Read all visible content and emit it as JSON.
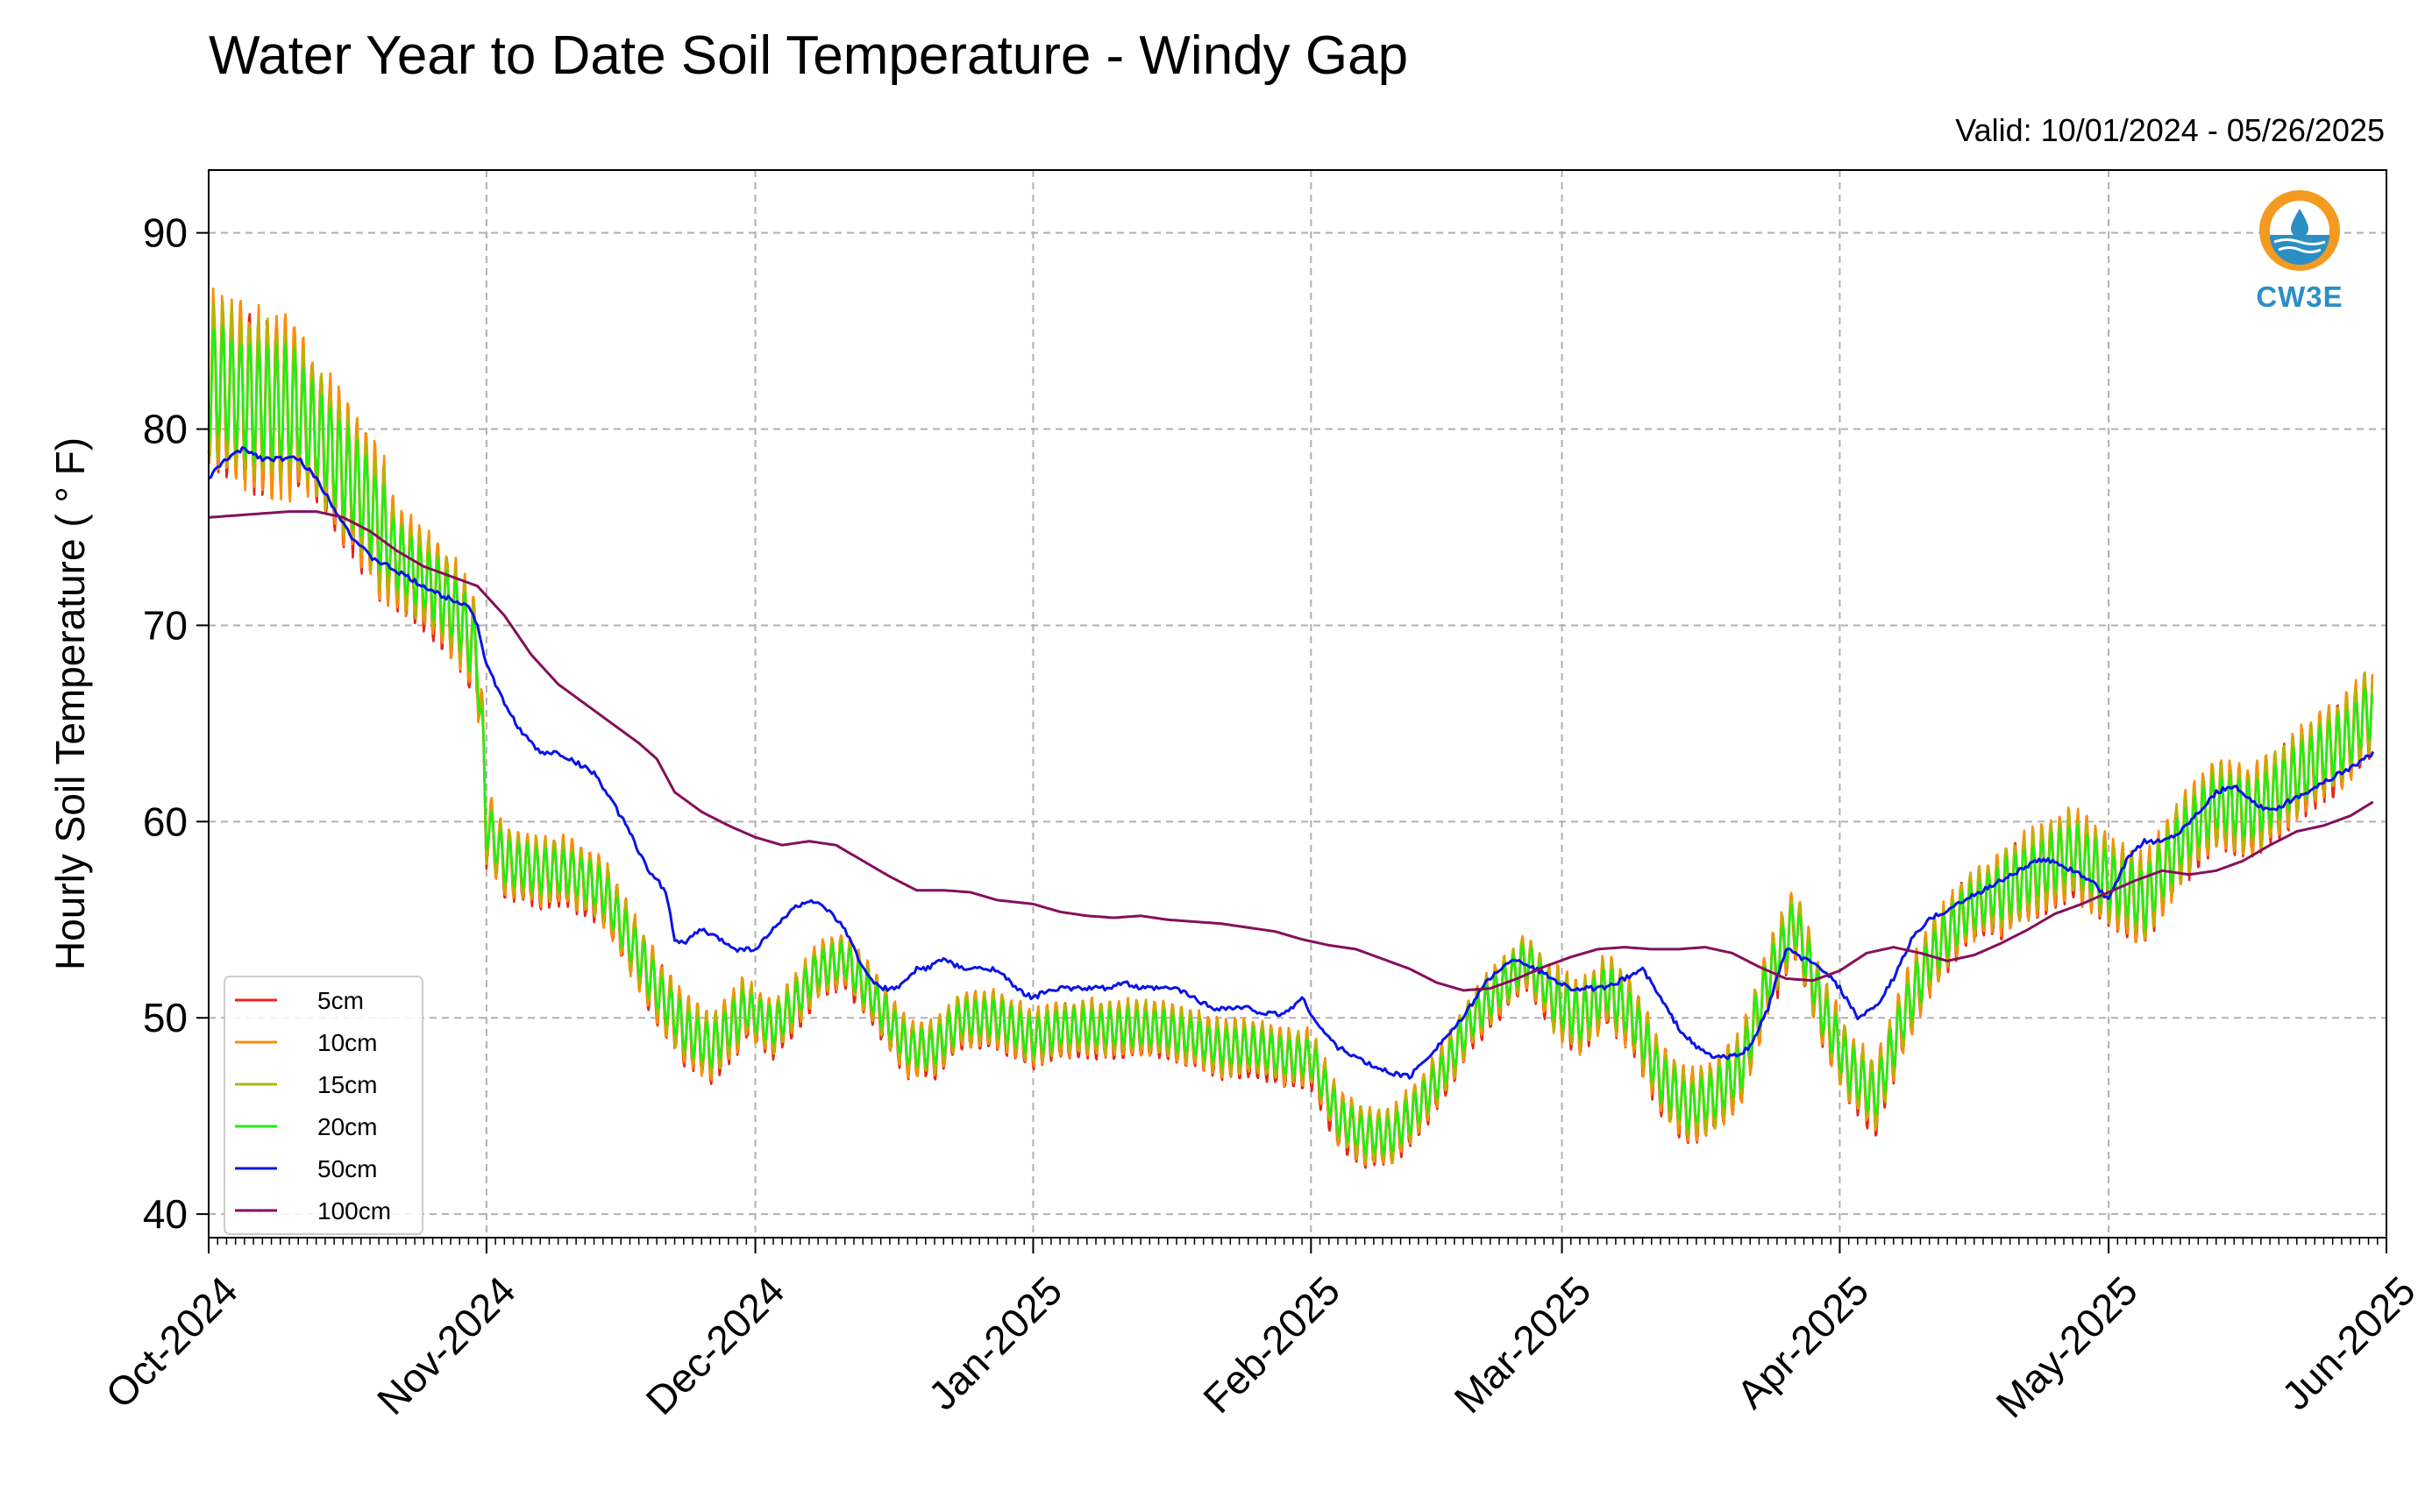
{
  "title": "Water Year to Date Soil Temperature - Windy Gap",
  "subtitle": "Valid: 10/01/2024 - 05/26/2025",
  "logo": {
    "text": "CW3E",
    "icon": "cw3e-logo-icon",
    "colors": {
      "orange": "#f39a21",
      "blue": "#2b8fc4"
    }
  },
  "chart_data": {
    "type": "line",
    "ylabel": "Hourly Soil Temperature ($^\\circ$F)",
    "ylabel_display": "Hourly Soil Temperature ( ° F)",
    "xlabel": "",
    "x_start": "2024-10-01",
    "x_end": "2025-06-01",
    "xlim_days": [
      0,
      243
    ],
    "ylim": [
      38.8,
      93.2
    ],
    "y_ticks": [
      40,
      50,
      60,
      70,
      80,
      90
    ],
    "x_tick_days": [
      0,
      31,
      61,
      92,
      123,
      151,
      182,
      212,
      243
    ],
    "x_tick_labels": [
      "Oct-2024",
      "Nov-2024",
      "Dec-2024",
      "Jan-2025",
      "Feb-2025",
      "Mar-2025",
      "Apr-2025",
      "May-2025",
      "Jun-2025"
    ],
    "grid": true,
    "legend_position": "lower-left",
    "series": [
      {
        "name": "5cm",
        "color": "#e8221b",
        "days": [
          0,
          5,
          10,
          15,
          18,
          21,
          25,
          28,
          30,
          31,
          33,
          37,
          40,
          44,
          47,
          50,
          53,
          56,
          58,
          60,
          63,
          65,
          68,
          71,
          75,
          78,
          81,
          84,
          88,
          92,
          95,
          98,
          102,
          106,
          110,
          113,
          117,
          120,
          123,
          126,
          129,
          132,
          135,
          138,
          141,
          144,
          147,
          150,
          153,
          156,
          159,
          162,
          165,
          168,
          171,
          174,
          177,
          180,
          183,
          186,
          189,
          192,
          196,
          200,
          204,
          208,
          212,
          216,
          220,
          224,
          228,
          232,
          236,
          238,
          240,
          241.5
        ],
        "values": [
          82.5,
          81.5,
          81,
          78,
          76,
          73.5,
          72,
          70.5,
          68.5,
          60,
          58,
          57.5,
          57.5,
          56.5,
          54,
          51.5,
          49.5,
          48.5,
          49.5,
          50.5,
          49.5,
          50.5,
          52.5,
          53,
          50.5,
          48.5,
          48.5,
          50,
          50,
          49,
          49.5,
          49.5,
          49.5,
          49.5,
          49,
          48.5,
          48.5,
          48,
          48,
          45,
          44,
          44,
          45.5,
          47.5,
          50,
          51.5,
          53,
          51,
          50,
          51.5,
          50,
          47,
          45.5,
          46,
          47.5,
          52,
          55,
          50.5,
          47.5,
          46,
          50,
          53,
          55.5,
          56.5,
          57.5,
          58.5,
          57,
          56,
          59,
          61,
          60.5,
          62,
          63.5,
          64,
          65,
          66
        ]
      },
      {
        "name": "10cm",
        "color": "#ff8c00",
        "days": [
          0,
          5,
          10,
          15,
          18,
          21,
          25,
          28,
          30,
          31,
          33,
          37,
          40,
          44,
          47,
          50,
          53,
          56,
          58,
          60,
          63,
          65,
          68,
          71,
          75,
          78,
          81,
          84,
          88,
          92,
          95,
          98,
          102,
          106,
          110,
          113,
          117,
          120,
          123,
          126,
          129,
          132,
          135,
          138,
          141,
          144,
          147,
          150,
          153,
          156,
          159,
          162,
          165,
          168,
          171,
          174,
          177,
          180,
          183,
          186,
          189,
          192,
          196,
          200,
          204,
          208,
          212,
          216,
          220,
          224,
          228,
          232,
          236,
          238,
          240,
          241.5
        ],
        "values": [
          82.5,
          81.5,
          81,
          78,
          76,
          73.5,
          72,
          70.5,
          68.5,
          60,
          58,
          57.5,
          57.5,
          56.5,
          54,
          51.5,
          49.5,
          48.5,
          49.5,
          50.5,
          49.5,
          50.5,
          52.5,
          53,
          50.5,
          48.5,
          48.5,
          50,
          50,
          49,
          49.5,
          49.5,
          49.5,
          49.5,
          49,
          48.5,
          48.5,
          48,
          48,
          45,
          44,
          44,
          45.5,
          47.5,
          50,
          51.5,
          53,
          51,
          50,
          51.5,
          50,
          47,
          45.5,
          46,
          47.5,
          52,
          55,
          50.5,
          47.5,
          46,
          50,
          53,
          55.5,
          56.5,
          57.5,
          58.5,
          57,
          56,
          59,
          61,
          60.5,
          62,
          63.5,
          64,
          65,
          66
        ]
      },
      {
        "name": "15cm",
        "color": "#b5b500",
        "days": [
          0,
          5,
          10,
          15,
          18,
          21,
          25,
          28,
          30,
          31,
          33,
          37,
          40,
          44,
          47,
          50,
          53,
          56,
          58,
          60,
          63,
          65,
          68,
          71,
          75,
          78,
          81,
          84,
          88,
          92,
          95,
          98,
          102,
          106,
          110,
          113,
          117,
          120,
          123,
          126,
          129,
          132,
          135,
          138,
          141,
          144,
          147,
          150,
          153,
          156,
          159,
          162,
          165,
          168,
          171,
          174,
          177,
          180,
          183,
          186,
          189,
          192,
          196,
          200,
          204,
          208,
          212,
          216,
          220,
          224,
          228,
          232,
          236,
          238,
          240,
          241.5
        ],
        "values": [
          82.5,
          81.5,
          81,
          78,
          76,
          73.5,
          72,
          70.5,
          68.5,
          60,
          58,
          57.5,
          57.5,
          56.5,
          54,
          51.5,
          49.5,
          48.5,
          49.5,
          50.5,
          49.5,
          50.5,
          52.5,
          53,
          50.5,
          48.5,
          48.5,
          50,
          50,
          49,
          49.5,
          49.5,
          49.5,
          49.5,
          49,
          48.5,
          48.5,
          48,
          48,
          45,
          44,
          44,
          45.5,
          47.5,
          50,
          51.5,
          53,
          51,
          50,
          51.5,
          50,
          47,
          45.5,
          46,
          47.5,
          52,
          55,
          50.5,
          47.5,
          46,
          50,
          53,
          55.5,
          56.5,
          57.5,
          58.5,
          57,
          56,
          59,
          61,
          60.5,
          62,
          63.5,
          64,
          65,
          66
        ]
      },
      {
        "name": "20cm",
        "color": "#22ee11",
        "days": [
          0,
          5,
          10,
          15,
          18,
          21,
          25,
          28,
          30,
          31,
          33,
          37,
          40,
          44,
          47,
          50,
          53,
          56,
          58,
          60,
          63,
          65,
          68,
          71,
          75,
          78,
          81,
          84,
          88,
          92,
          95,
          98,
          102,
          106,
          110,
          113,
          117,
          120,
          123,
          126,
          129,
          132,
          135,
          138,
          141,
          144,
          147,
          150,
          153,
          156,
          159,
          162,
          165,
          168,
          171,
          174,
          177,
          180,
          183,
          186,
          189,
          192,
          196,
          200,
          204,
          208,
          212,
          216,
          220,
          224,
          228,
          232,
          236,
          238,
          240,
          241.5
        ],
        "values": [
          82.5,
          81.5,
          81,
          78,
          76,
          73.5,
          72,
          70.5,
          68.5,
          60,
          58,
          57.5,
          57.5,
          56.5,
          54,
          51.5,
          49.5,
          48.5,
          49.5,
          50.5,
          49.5,
          50.5,
          52.5,
          53,
          50.5,
          48.5,
          48.5,
          50,
          50,
          49,
          49.5,
          49.5,
          49.5,
          49.5,
          49,
          48.5,
          48.5,
          48,
          48,
          45,
          44,
          44,
          45.5,
          47.5,
          50,
          51.5,
          53,
          51,
          50,
          51.5,
          50,
          47,
          45.5,
          46,
          47.5,
          52,
          55,
          50.5,
          47.5,
          46,
          50,
          53,
          55.5,
          56.5,
          57.5,
          58.5,
          57,
          56,
          59,
          61,
          60.5,
          62,
          63.5,
          64,
          65,
          66
        ]
      },
      {
        "name": "50cm",
        "color": "#0a14e6",
        "days": [
          0,
          2,
          4,
          6,
          8,
          10,
          12,
          14,
          16,
          18,
          20,
          22,
          24,
          26,
          28,
          29,
          30,
          31,
          33,
          35,
          37,
          39,
          41,
          43,
          45,
          47,
          49,
          50,
          51,
          52,
          53,
          55,
          57,
          59,
          61,
          63,
          65,
          67,
          69,
          71,
          73,
          75,
          77,
          79,
          80,
          82,
          84,
          86,
          88,
          90,
          92,
          94,
          96,
          98,
          100,
          102,
          104,
          106,
          108,
          110,
          112,
          114,
          116,
          118,
          120,
          122,
          124,
          126,
          128,
          130,
          132,
          134,
          136,
          138,
          140,
          142,
          144,
          146,
          148,
          150,
          152,
          154,
          156,
          158,
          160,
          162,
          164,
          166,
          168,
          170,
          172,
          174,
          176,
          178,
          180,
          182,
          184,
          186,
          188,
          190,
          192,
          194,
          196,
          198,
          200,
          202,
          204,
          206,
          208,
          210,
          212,
          214,
          216,
          218,
          220,
          222,
          224,
          226,
          228,
          230,
          232,
          234,
          236,
          238,
          240,
          241.5
        ],
        "values": [
          77.5,
          78.5,
          79,
          78.5,
          78.5,
          78.5,
          77.5,
          76,
          74.5,
          73.5,
          73,
          72.5,
          72,
          71.5,
          71.2,
          71,
          70,
          68,
          66,
          64.5,
          63.5,
          63.5,
          63,
          62.5,
          61,
          59.5,
          57.5,
          57,
          56.5,
          54,
          53.8,
          54.5,
          54,
          53.5,
          53.5,
          54.5,
          55.5,
          56,
          55.5,
          54.5,
          52.5,
          51.5,
          51.5,
          52.5,
          52.5,
          53,
          52.5,
          52.5,
          52.5,
          51.5,
          51,
          51.5,
          51.5,
          51.5,
          51.5,
          51.8,
          51.5,
          51.5,
          51.5,
          51,
          50.5,
          50.5,
          50.5,
          50.2,
          50.2,
          51,
          49.5,
          48.5,
          48,
          47.5,
          47.2,
          47,
          48,
          49,
          50,
          51.5,
          52.5,
          53,
          52.5,
          52,
          51.5,
          51.5,
          51.5,
          52,
          52.5,
          51,
          49.5,
          48.5,
          48,
          48,
          48.5,
          50.5,
          53.5,
          53,
          52.5,
          51.5,
          50,
          50.5,
          52,
          54,
          55,
          55.5,
          56,
          56.5,
          57,
          57.5,
          58,
          58,
          57.5,
          57,
          56,
          58,
          59,
          59,
          59.5,
          60.5,
          61.5,
          61.8,
          61,
          60.5,
          61,
          61.5,
          62,
          62.5,
          63,
          63.5
        ]
      },
      {
        "name": "100cm",
        "color": "#850f5c",
        "days": [
          0,
          3,
          6,
          9,
          12,
          15,
          18,
          21,
          24,
          27,
          30,
          33,
          36,
          39,
          42,
          45,
          48,
          50,
          52,
          55,
          58,
          61,
          64,
          67,
          70,
          73,
          76,
          79,
          82,
          85,
          88,
          92,
          95,
          98,
          101,
          104,
          107,
          110,
          113,
          116,
          119,
          122,
          125,
          128,
          131,
          134,
          137,
          140,
          143,
          146,
          149,
          152,
          155,
          158,
          161,
          164,
          167,
          170,
          173,
          176,
          179,
          182,
          185,
          188,
          191,
          194,
          197,
          200,
          203,
          206,
          209,
          212,
          215,
          218,
          221,
          224,
          227,
          230,
          233,
          236,
          239,
          241.5
        ],
        "values": [
          75.5,
          75.6,
          75.7,
          75.8,
          75.8,
          75.5,
          74.8,
          73.8,
          73,
          72.5,
          72,
          70.5,
          68.5,
          67,
          66,
          65,
          64,
          63.2,
          61.5,
          60.5,
          59.8,
          59.2,
          58.8,
          59,
          58.8,
          58,
          57.2,
          56.5,
          56.5,
          56.4,
          56,
          55.8,
          55.4,
          55.2,
          55.1,
          55.2,
          55,
          54.9,
          54.8,
          54.6,
          54.4,
          54,
          53.7,
          53.5,
          53,
          52.5,
          51.8,
          51.4,
          51.5,
          52,
          52.6,
          53.1,
          53.5,
          53.6,
          53.5,
          53.5,
          53.6,
          53.3,
          52.6,
          52,
          51.9,
          52.4,
          53.3,
          53.6,
          53.3,
          52.9,
          53.2,
          53.8,
          54.5,
          55.3,
          55.8,
          56.4,
          57,
          57.5,
          57.3,
          57.5,
          58,
          58.8,
          59.5,
          59.8,
          60.3,
          61
        ]
      }
    ]
  }
}
